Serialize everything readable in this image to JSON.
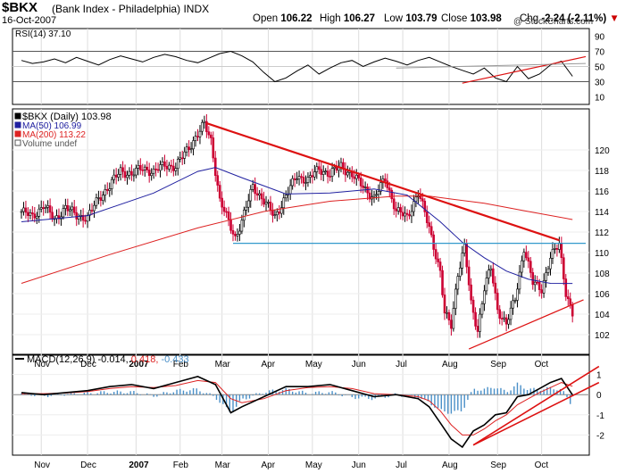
{
  "header": {
    "symbol": "$BKX",
    "name": "(Bank Index - Philadelphia)",
    "exchange": "INDX",
    "date": "16-Oct-2007",
    "open_label": "Open",
    "open": "106.22",
    "high_label": "High",
    "high": "106.27",
    "low_label": "Low",
    "low": "103.79",
    "close_label": "Close",
    "close": "103.98",
    "chg_label": "Chg",
    "chg": "-2.24 (-2.11%)",
    "chg_arrow": "▼",
    "watermark": "@ StockCharts.com"
  },
  "colors": {
    "price_up": "#000000",
    "price_down": "#cc0033",
    "ma50": "#2020a0",
    "ma200": "#dd2222",
    "trend": "#dd1111",
    "support": "#3399cc",
    "hist": "#4a90c8"
  },
  "chart_data": [
    {
      "type": "line",
      "panel": "rsi",
      "title": "RSI(14) 37.10",
      "label": "RSI(14)",
      "value": "37.10",
      "ylim": [
        0,
        100
      ],
      "ticks": [
        10,
        30,
        50,
        70,
        90
      ],
      "ref_lines": [
        30,
        70
      ],
      "x": [
        0,
        5,
        10,
        15,
        20,
        25,
        30,
        35,
        40,
        45,
        50,
        55,
        60,
        65,
        70,
        75,
        80,
        85,
        90,
        95,
        100,
        105,
        110,
        115,
        120,
        125,
        130,
        135,
        140,
        145,
        150,
        155,
        160,
        165,
        170,
        175,
        180,
        185,
        190,
        195,
        200,
        205,
        210,
        215,
        220,
        225,
        230,
        235,
        240,
        245,
        250
      ],
      "values": [
        58,
        54,
        56,
        60,
        55,
        62,
        57,
        52,
        59,
        64,
        60,
        56,
        62,
        66,
        63,
        58,
        55,
        61,
        67,
        70,
        64,
        56,
        42,
        30,
        35,
        44,
        52,
        40,
        48,
        55,
        58,
        50,
        56,
        61,
        57,
        52,
        58,
        62,
        56,
        50,
        45,
        40,
        48,
        35,
        30,
        50,
        34,
        40,
        52,
        57,
        37
      ]
    },
    {
      "type": "candlestick",
      "panel": "price",
      "title": "$BKX (Daily) 103.98",
      "legend": [
        {
          "label": "$BKX (Daily)",
          "value": "103.98"
        },
        {
          "label": "MA(50)",
          "value": "106.99"
        },
        {
          "label": "MA(200)",
          "value": "113.22"
        },
        {
          "label": "Volume undef",
          "value": ""
        }
      ],
      "ylim": [
        100,
        124
      ],
      "y_ticks": [
        102,
        104,
        106,
        108,
        110,
        112,
        114,
        116,
        118,
        120
      ],
      "x_tick_labels": [
        {
          "t": 9,
          "label": "Nov"
        },
        {
          "t": 30,
          "label": "Dec"
        },
        {
          "t": 52,
          "label": "2007"
        },
        {
          "t": 72,
          "label": "Feb"
        },
        {
          "t": 91,
          "label": "Mar"
        },
        {
          "t": 112,
          "label": "Apr"
        },
        {
          "t": 132,
          "label": "May"
        },
        {
          "t": 153,
          "label": "Jun"
        },
        {
          "t": 173,
          "label": "Jul"
        },
        {
          "t": 194,
          "label": "Aug"
        },
        {
          "t": 216,
          "label": "Sep"
        },
        {
          "t": 236,
          "label": "Oct"
        }
      ],
      "closes": [
        {
          "t": 0,
          "v": 114.0
        },
        {
          "t": 5,
          "v": 113.5
        },
        {
          "t": 10,
          "v": 114.6
        },
        {
          "t": 15,
          "v": 113.2
        },
        {
          "t": 20,
          "v": 114.4
        },
        {
          "t": 25,
          "v": 113.6
        },
        {
          "t": 30,
          "v": 113.4
        },
        {
          "t": 35,
          "v": 115.3
        },
        {
          "t": 40,
          "v": 116.5
        },
        {
          "t": 45,
          "v": 118.0
        },
        {
          "t": 50,
          "v": 117.6
        },
        {
          "t": 55,
          "v": 118.3
        },
        {
          "t": 60,
          "v": 117.8
        },
        {
          "t": 65,
          "v": 118.6
        },
        {
          "t": 70,
          "v": 118.3
        },
        {
          "t": 75,
          "v": 120.0
        },
        {
          "t": 80,
          "v": 121.5
        },
        {
          "t": 83,
          "v": 122.5
        },
        {
          "t": 86,
          "v": 121.0
        },
        {
          "t": 90,
          "v": 115.0
        },
        {
          "t": 93,
          "v": 113.5
        },
        {
          "t": 97,
          "v": 111.5
        },
        {
          "t": 100,
          "v": 113.0
        },
        {
          "t": 105,
          "v": 116.5
        },
        {
          "t": 110,
          "v": 115.0
        },
        {
          "t": 115,
          "v": 113.5
        },
        {
          "t": 120,
          "v": 115.5
        },
        {
          "t": 125,
          "v": 117.5
        },
        {
          "t": 130,
          "v": 117.0
        },
        {
          "t": 135,
          "v": 118.2
        },
        {
          "t": 140,
          "v": 117.6
        },
        {
          "t": 145,
          "v": 118.5
        },
        {
          "t": 150,
          "v": 117.5
        },
        {
          "t": 155,
          "v": 116.5
        },
        {
          "t": 160,
          "v": 115.2
        },
        {
          "t": 165,
          "v": 117.3
        },
        {
          "t": 170,
          "v": 114.0
        },
        {
          "t": 175,
          "v": 113.5
        },
        {
          "t": 180,
          "v": 115.8
        },
        {
          "t": 185,
          "v": 112.5
        },
        {
          "t": 190,
          "v": 108.0
        },
        {
          "t": 192,
          "v": 104.0
        },
        {
          "t": 195,
          "v": 103.0
        },
        {
          "t": 198,
          "v": 108.0
        },
        {
          "t": 201,
          "v": 110.5
        },
        {
          "t": 204,
          "v": 105.0
        },
        {
          "t": 207,
          "v": 102.5
        },
        {
          "t": 210,
          "v": 106.5
        },
        {
          "t": 213,
          "v": 108.5
        },
        {
          "t": 216,
          "v": 104.5
        },
        {
          "t": 220,
          "v": 103.0
        },
        {
          "t": 224,
          "v": 105.5
        },
        {
          "t": 228,
          "v": 110.5
        },
        {
          "t": 232,
          "v": 107.0
        },
        {
          "t": 236,
          "v": 106.5
        },
        {
          "t": 240,
          "v": 109.5
        },
        {
          "t": 244,
          "v": 110.8
        },
        {
          "t": 247,
          "v": 106.2
        },
        {
          "t": 250,
          "v": 103.98
        }
      ],
      "ma50": [
        {
          "t": 0,
          "v": 113.0
        },
        {
          "t": 30,
          "v": 113.6
        },
        {
          "t": 60,
          "v": 115.8
        },
        {
          "t": 80,
          "v": 117.9
        },
        {
          "t": 88,
          "v": 118.3
        },
        {
          "t": 100,
          "v": 117.3
        },
        {
          "t": 120,
          "v": 115.7
        },
        {
          "t": 140,
          "v": 115.8
        },
        {
          "t": 160,
          "v": 116.2
        },
        {
          "t": 175,
          "v": 115.6
        },
        {
          "t": 190,
          "v": 113.0
        },
        {
          "t": 200,
          "v": 111.0
        },
        {
          "t": 210,
          "v": 109.5
        },
        {
          "t": 220,
          "v": 108.2
        },
        {
          "t": 230,
          "v": 107.4
        },
        {
          "t": 240,
          "v": 107.0
        },
        {
          "t": 250,
          "v": 106.99
        }
      ],
      "ma200": [
        {
          "t": 0,
          "v": 107.0
        },
        {
          "t": 40,
          "v": 109.8
        },
        {
          "t": 80,
          "v": 112.4
        },
        {
          "t": 110,
          "v": 114.0
        },
        {
          "t": 140,
          "v": 115.0
        },
        {
          "t": 170,
          "v": 115.5
        },
        {
          "t": 185,
          "v": 115.5
        },
        {
          "t": 210,
          "v": 114.8
        },
        {
          "t": 230,
          "v": 114.0
        },
        {
          "t": 250,
          "v": 113.22
        }
      ],
      "trendlines": [
        {
          "name": "resistance",
          "points": [
            {
              "t": 84,
              "v": 122.6
            },
            {
              "t": 244,
              "v": 111.2
            }
          ]
        },
        {
          "name": "support-low",
          "points": [
            {
              "t": 203,
              "v": 100.6
            },
            {
              "t": 255,
              "v": 105.4
            }
          ]
        },
        {
          "name": "horizontal-support",
          "points": [
            {
              "t": 96,
              "v": 110.9
            },
            {
              "t": 256,
              "v": 110.9
            }
          ]
        }
      ]
    },
    {
      "type": "line",
      "panel": "macd",
      "title": "MACD(12,26,9) -0.014, 0.418, -0.433",
      "label": "MACD(12,26,9)",
      "values_text": [
        "-0.014",
        "0.418",
        "-0.433"
      ],
      "ylim": [
        -3,
        2
      ],
      "y_ticks": [
        -2,
        -1,
        0,
        1
      ],
      "x": [
        0,
        10,
        20,
        30,
        40,
        50,
        60,
        70,
        80,
        88,
        95,
        100,
        110,
        120,
        130,
        140,
        150,
        160,
        170,
        180,
        185,
        190,
        195,
        200,
        205,
        210,
        215,
        220,
        225,
        230,
        235,
        240,
        245,
        250
      ],
      "macd": [
        0.1,
        0.0,
        0.1,
        0.2,
        0.4,
        0.5,
        0.3,
        0.6,
        0.9,
        0.5,
        -0.9,
        -0.6,
        -0.1,
        0.4,
        0.4,
        0.5,
        0.2,
        -0.1,
        0.0,
        -0.2,
        -0.6,
        -1.4,
        -2.2,
        -2.6,
        -1.8,
        -1.5,
        -1.0,
        -0.9,
        -0.1,
        0.0,
        0.3,
        0.6,
        0.8,
        -0.014
      ],
      "signal": [
        0.05,
        0.05,
        0.08,
        0.15,
        0.3,
        0.4,
        0.35,
        0.45,
        0.7,
        0.6,
        -0.2,
        -0.4,
        -0.2,
        0.2,
        0.35,
        0.4,
        0.3,
        0.05,
        0.0,
        -0.1,
        -0.3,
        -0.8,
        -1.5,
        -2.0,
        -2.0,
        -1.7,
        -1.3,
        -1.0,
        -0.5,
        -0.2,
        0.1,
        0.35,
        0.6,
        0.418
      ],
      "trendlines": [
        {
          "name": "macd-support-1",
          "points": [
            {
              "t": 205,
              "v": -2.5
            },
            {
              "t": 262,
              "v": 1.4
            }
          ]
        },
        {
          "name": "macd-support-2",
          "points": [
            {
              "t": 205,
              "v": -2.5
            },
            {
              "t": 262,
              "v": 0.6
            }
          ]
        }
      ]
    }
  ]
}
